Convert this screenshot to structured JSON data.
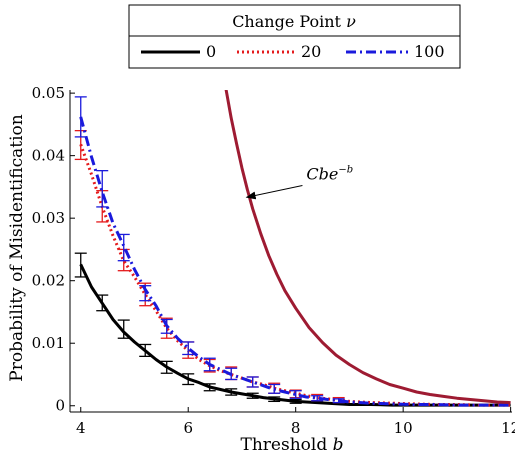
{
  "chart_data": {
    "type": "line",
    "xlabel": "Threshold",
    "xlabel_symbol": "b",
    "ylabel": "Probability of Misidentification",
    "xlim": [
      3.8,
      12.1
    ],
    "ylim": [
      -0.001,
      0.0505
    ],
    "x_ticks": [
      4,
      6,
      8,
      10,
      12
    ],
    "x_tick_labels": [
      "4",
      "6",
      "8",
      "10",
      "12"
    ],
    "y_ticks": [
      0,
      0.01,
      0.02,
      0.03,
      0.04,
      0.05
    ],
    "y_tick_labels": [
      "0",
      "0.01",
      "0.02",
      "0.03",
      "0.04",
      "0.05"
    ],
    "grid": false,
    "legend": {
      "placement": "top-center",
      "title": "Change Point",
      "title_symbol": "ν",
      "entries": [
        "0",
        "20",
        "100"
      ]
    },
    "series": [
      {
        "name": "0",
        "color": "#000000",
        "style": "solid",
        "x": [
          4,
          4.2,
          4.4,
          4.6,
          4.8,
          5,
          5.2,
          5.4,
          5.6,
          5.8,
          6,
          6.2,
          6.4,
          6.6,
          6.8,
          7,
          7.2,
          7.4,
          7.6,
          7.8,
          8,
          8.2,
          8.4,
          8.6,
          8.8,
          9,
          9.4,
          9.8,
          10.2,
          10.6,
          11,
          11.4,
          11.8,
          12
        ],
        "y": [
          0.0226,
          0.019,
          0.0164,
          0.0138,
          0.0118,
          0.0102,
          0.0088,
          0.0074,
          0.0062,
          0.0052,
          0.0043,
          0.0037,
          0.003,
          0.0026,
          0.0022,
          0.0019,
          0.0016,
          0.0013,
          0.0011,
          0.0009,
          0.0007,
          0.0006,
          0.0005,
          0.0004,
          0.0003,
          0.0002,
          0.0002,
          0.0001,
          0.0001,
          0.0001,
          0.0001,
          0.0001,
          0.0001,
          0.0001
        ],
        "error_x": [
          4,
          4.4,
          4.8,
          5.2,
          5.6,
          6,
          6.4,
          6.8,
          7.2,
          7.6,
          8
        ],
        "error_lo": [
          0.0206,
          0.0152,
          0.0108,
          0.0079,
          0.0052,
          0.0034,
          0.0024,
          0.0017,
          0.0012,
          0.0007,
          0.0004
        ],
        "error_hi": [
          0.0244,
          0.0177,
          0.0137,
          0.0098,
          0.0071,
          0.0051,
          0.0035,
          0.0027,
          0.002,
          0.0014,
          0.001
        ]
      },
      {
        "name": "20",
        "color": "#e41a1c",
        "style": "dotted",
        "x": [
          4,
          4.2,
          4.4,
          4.6,
          4.8,
          5,
          5.2,
          5.4,
          5.6,
          5.8,
          6,
          6.2,
          6.4,
          6.6,
          6.8,
          7,
          7.2,
          7.4,
          7.6,
          7.8,
          8,
          8.2,
          8.4,
          8.6,
          8.8,
          9,
          9.4,
          9.8,
          10.2,
          10.6,
          11,
          11.4,
          11.8,
          12
        ],
        "y": [
          0.0418,
          0.037,
          0.0318,
          0.0272,
          0.0232,
          0.0206,
          0.0178,
          0.0152,
          0.0124,
          0.0104,
          0.0088,
          0.0074,
          0.0064,
          0.0056,
          0.005,
          0.0044,
          0.0038,
          0.0034,
          0.0028,
          0.0024,
          0.002,
          0.0016,
          0.0013,
          0.0011,
          0.0009,
          0.0007,
          0.0005,
          0.0004,
          0.0003,
          0.0002,
          0.0002,
          0.0001,
          0.0001,
          0.0001
        ],
        "error_x": [
          4,
          4.4,
          4.8,
          5.2,
          5.6,
          6,
          6.4,
          6.8,
          7.2,
          7.6,
          8,
          8.4,
          8.8
        ],
        "error_lo": [
          0.0394,
          0.0294,
          0.0216,
          0.016,
          0.0108,
          0.0076,
          0.0054,
          0.0042,
          0.003,
          0.002,
          0.0013,
          0.0008,
          0.0005
        ],
        "error_hi": [
          0.044,
          0.0344,
          0.025,
          0.0196,
          0.014,
          0.0102,
          0.0074,
          0.0062,
          0.0046,
          0.0036,
          0.0025,
          0.0018,
          0.0013
        ]
      },
      {
        "name": "100",
        "color": "#1a1adc",
        "style": "dash-dot",
        "x": [
          4,
          4.2,
          4.4,
          4.6,
          4.8,
          5,
          5.2,
          5.4,
          5.6,
          5.8,
          6,
          6.2,
          6.4,
          6.6,
          6.8,
          7,
          7.2,
          7.4,
          7.6,
          7.8,
          8,
          8.2,
          8.4,
          8.6,
          8.8,
          9,
          9.4,
          9.8,
          10.2,
          10.6,
          11,
          11.4,
          11.8,
          12
        ],
        "y": [
          0.0462,
          0.0398,
          0.0342,
          0.0292,
          0.0256,
          0.0218,
          0.0186,
          0.016,
          0.0128,
          0.0108,
          0.0092,
          0.0078,
          0.0066,
          0.0058,
          0.005,
          0.0044,
          0.0038,
          0.0032,
          0.0026,
          0.0022,
          0.0018,
          0.0014,
          0.0012,
          0.001,
          0.0008,
          0.0006,
          0.0004,
          0.0003,
          0.0002,
          0.0002,
          0.0001,
          0.0001,
          0.0001,
          0.0001
        ],
        "error_x": [
          4,
          4.4,
          4.8,
          5.2,
          5.6,
          6,
          6.4,
          6.8,
          7.2,
          7.6,
          8,
          8.4,
          8.8
        ],
        "error_lo": [
          0.043,
          0.0318,
          0.0232,
          0.0168,
          0.0116,
          0.0082,
          0.0056,
          0.0042,
          0.003,
          0.002,
          0.0012,
          0.0008,
          0.0005
        ],
        "error_hi": [
          0.0494,
          0.0376,
          0.0274,
          0.0192,
          0.0138,
          0.0102,
          0.0076,
          0.006,
          0.0046,
          0.0034,
          0.0024,
          0.0016,
          0.0011
        ]
      },
      {
        "name": "Cbe",
        "color": "#9e1b32",
        "style": "solid",
        "x": [
          6.7,
          6.8,
          6.9,
          7,
          7.1,
          7.2,
          7.35,
          7.5,
          7.65,
          7.8,
          8,
          8.25,
          8.5,
          8.75,
          9,
          9.25,
          9.5,
          9.75,
          10,
          10.25,
          10.5,
          10.75,
          11,
          11.25,
          11.5,
          11.75,
          12
        ],
        "y": [
          0.0508,
          0.046,
          0.0419,
          0.038,
          0.0346,
          0.0315,
          0.0275,
          0.024,
          0.021,
          0.0184,
          0.0156,
          0.0125,
          0.0101,
          0.0081,
          0.0066,
          0.0053,
          0.0043,
          0.0034,
          0.0028,
          0.0022,
          0.0018,
          0.0015,
          0.0012,
          0.001,
          0.0008,
          0.0006,
          0.0005
        ]
      }
    ],
    "annotation": {
      "text": "Cbe",
      "superscript": "−b",
      "arrow_from": [
        7.05,
        0.0335
      ],
      "text_at": [
        8.2,
        0.0365
      ]
    }
  }
}
